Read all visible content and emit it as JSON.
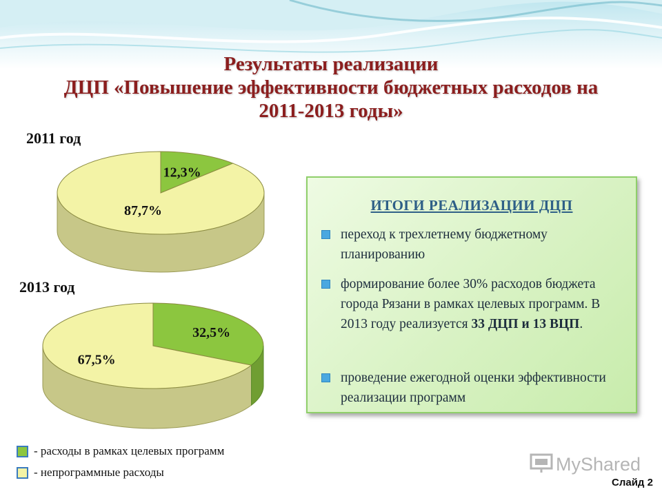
{
  "title_lines": [
    "Результаты реализации",
    "ДЦП «Повышение эффективности бюджетных расходов на",
    "2011-2013 годы»"
  ],
  "chart_data": [
    {
      "type": "pie",
      "title": "2011 год",
      "labels": [
        "расходы в рамках целевых программ",
        "непрограммные расходы"
      ],
      "values": [
        12.3,
        87.7
      ],
      "value_labels": [
        "12,3%",
        "87,7%"
      ],
      "colors": [
        "#8cc63f",
        "#f3f3a6"
      ]
    },
    {
      "type": "pie",
      "title": "2013 год",
      "labels": [
        "расходы в рамках целевых программ",
        "непрограммные расходы"
      ],
      "values": [
        32.5,
        67.5
      ],
      "value_labels": [
        "32,5%",
        "67,5%"
      ],
      "colors": [
        "#8cc63f",
        "#f3f3a6"
      ]
    }
  ],
  "results_box": {
    "title": "ИТОГИ РЕАЛИЗАЦИИ ДЦП",
    "bullets": [
      {
        "text": "переход к трехлетнему бюджетному планированию"
      },
      {
        "text_before": "формирование более 30% расходов бюджета города Рязани в рамках целевых программ. В 2013 году реализуется ",
        "text_bold": "33 ДЦП и 13 ВЦП",
        "text_after": "."
      },
      {
        "text": "проведение ежегодной оценки эффективности реализации программ"
      }
    ]
  },
  "legend": [
    {
      "dash": "-",
      "label": "расходы  в рамках целевых программ",
      "color": "#8cc63f"
    },
    {
      "dash": "-",
      "label": "непрограммные расходы",
      "color": "#f3f3a6"
    }
  ],
  "watermark": "MyShared",
  "slide_label": "Слайд 2"
}
